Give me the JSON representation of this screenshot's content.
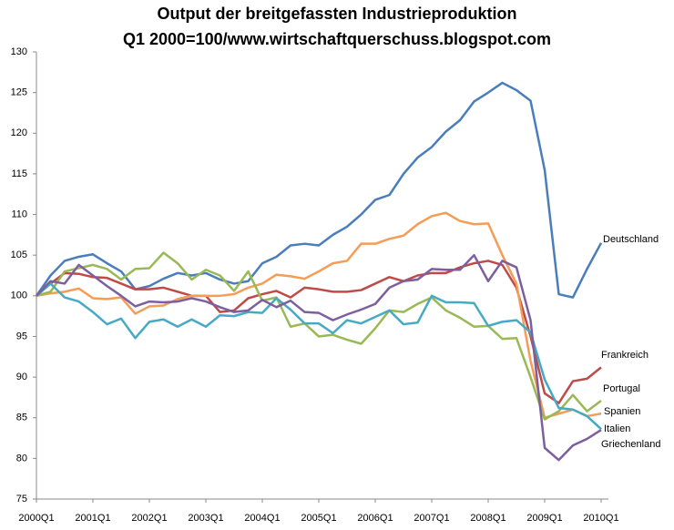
{
  "chart_data": {
    "type": "line",
    "title": "Output der breitgefassten Industrieproduktion",
    "subtitle": "Q1 2000=100/www.wirtschaftquerschuss.blogspot.com",
    "categories": [
      "2000Q1",
      null,
      null,
      null,
      "2001Q1",
      null,
      null,
      null,
      "2002Q1",
      null,
      null,
      null,
      "2003Q1",
      null,
      null,
      null,
      "2004Q1",
      null,
      null,
      null,
      "2005Q1",
      null,
      null,
      null,
      "2006Q1",
      null,
      null,
      null,
      "2007Q1",
      null,
      null,
      null,
      "2008Q1",
      null,
      null,
      null,
      "2009Q1",
      null,
      null,
      null,
      "2010Q1"
    ],
    "ylim": [
      75,
      130
    ],
    "yticks": [
      75,
      80,
      85,
      90,
      95,
      100,
      105,
      110,
      115,
      120,
      125,
      130
    ],
    "grid": false,
    "series": [
      {
        "name": "Deutschland",
        "color": "#4a7ebb",
        "values": [
          100,
          102.5,
          104.3,
          104.8,
          105.1,
          104,
          103,
          100.8,
          101.2,
          102.1,
          102.8,
          102.5,
          102.8,
          102,
          101.5,
          101.8,
          104,
          104.8,
          106.2,
          106.4,
          106.2,
          107.5,
          108.5,
          110,
          111.8,
          112.4,
          115,
          117,
          118.3,
          120.2,
          121.6,
          123.9,
          125,
          126.2,
          125.3,
          124,
          115.5,
          100.2,
          99.8,
          103.3,
          106.5
        ]
      },
      {
        "name": "Frankreich",
        "color": "#be4b48",
        "values": [
          100,
          101.5,
          102.8,
          102.7,
          102.3,
          102.2,
          101.5,
          100.8,
          100.8,
          101,
          100.5,
          100,
          100,
          98,
          98.2,
          99.7,
          100.2,
          100.6,
          99.8,
          101,
          100.8,
          100.5,
          100.5,
          100.7,
          101.5,
          102.3,
          101.8,
          102.5,
          102.8,
          102.8,
          103.5,
          104,
          104.3,
          103.8,
          101,
          95,
          88,
          86.8,
          89.5,
          89.8,
          91.2
        ]
      },
      {
        "name": "Portugal",
        "color": "#f59d56",
        "values": [
          100,
          100.3,
          100.5,
          100.9,
          99.7,
          99.6,
          99.8,
          97.8,
          98.7,
          98.8,
          99.6,
          100,
          100,
          100,
          100.2,
          101,
          101.5,
          102.6,
          102.4,
          102.1,
          103,
          104,
          104.3,
          106.4,
          106.4,
          107,
          107.4,
          108.8,
          109.8,
          110.2,
          109.2,
          108.8,
          108.9,
          105,
          101.5,
          92,
          85,
          85.5,
          86,
          85.2,
          85.5
        ]
      },
      {
        "name": "Spanien",
        "color": "#98b954",
        "values": [
          100,
          100.5,
          103,
          103.4,
          103.8,
          103.3,
          102,
          103.3,
          103.4,
          105.3,
          104,
          102,
          103.2,
          102.5,
          100.6,
          103,
          99.4,
          99.8,
          96.2,
          96.6,
          95,
          95.2,
          94.6,
          94.1,
          96,
          98.2,
          98,
          99,
          99.8,
          98.2,
          97.3,
          96.2,
          96.3,
          94.7,
          94.8,
          90,
          84.8,
          85.8,
          87.8,
          85.8,
          87.1
        ]
      },
      {
        "name": "Italien",
        "color": "#46aac5",
        "values": [
          100,
          101.5,
          99.8,
          99.3,
          98,
          96.5,
          97.2,
          94.8,
          96.8,
          97.1,
          96.2,
          97.1,
          96.2,
          97.6,
          97.5,
          98,
          97.9,
          99.7,
          98.3,
          96.6,
          96.6,
          95.4,
          97,
          96.6,
          97.4,
          98.2,
          96.5,
          96.7,
          100,
          99.2,
          99.2,
          99.1,
          96.3,
          96.8,
          97,
          95.5,
          89.7,
          86.2,
          86,
          85.2,
          83.6
        ]
      },
      {
        "name": "Griechenland",
        "color": "#7d5fa0",
        "values": [
          100,
          101.8,
          101.5,
          103.8,
          102.5,
          101.2,
          100,
          98.7,
          99.3,
          99.2,
          99.3,
          99.7,
          99.3,
          98.6,
          98,
          98.2,
          99.5,
          98.6,
          99.4,
          98,
          97.9,
          97,
          97.7,
          98.3,
          99,
          101,
          101.8,
          102,
          103.3,
          103.2,
          103.2,
          105,
          101.8,
          104.3,
          103.5,
          97,
          81.3,
          79.8,
          81.6,
          82.4,
          83.5
        ]
      }
    ]
  }
}
